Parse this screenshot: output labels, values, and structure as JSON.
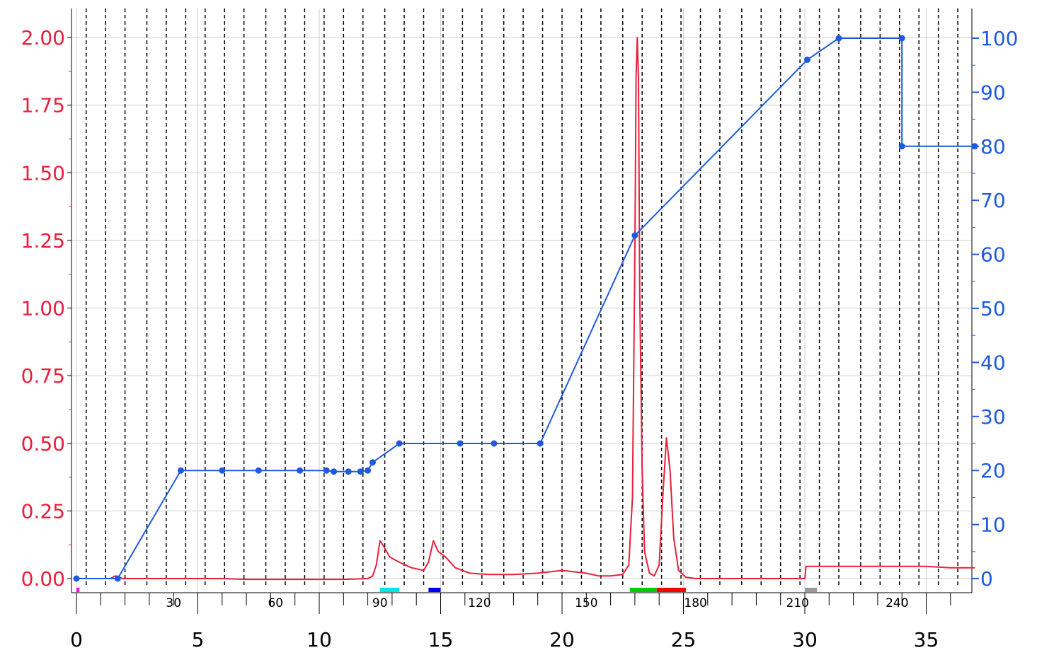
{
  "chart_data": {
    "type": "line",
    "title": "",
    "xlabel": "",
    "ylabel_left": "",
    "ylabel_right": "",
    "xlim": [
      0,
      37
    ],
    "ylim_left": [
      -0.03,
      2.1
    ],
    "ylim_right": [
      -1.5,
      105
    ],
    "x_ticks": [
      "0",
      "5",
      "10",
      "15",
      "20",
      "25",
      "30",
      "35"
    ],
    "y_left_ticks": [
      "0.00",
      "0.25",
      "0.50",
      "0.75",
      "1.00",
      "1.25",
      "1.50",
      "1.75",
      "2.00"
    ],
    "y_right_ticks": [
      "0",
      "10",
      "20",
      "30",
      "40",
      "50",
      "60",
      "70",
      "80",
      "90",
      "100"
    ],
    "grid": true,
    "fraction_labels": [
      "30",
      "60",
      "90",
      "120",
      "150",
      "180",
      "210",
      "240"
    ],
    "fraction_label_x": [
      4,
      8.2,
      12.5,
      16.6,
      21,
      25.5,
      29.7,
      33.8
    ],
    "fraction_lines_x": [
      0.4,
      1.2,
      2,
      2.9,
      3.7,
      4.5,
      5.3,
      6.1,
      6.9,
      7.8,
      8.6,
      9.4,
      10.2,
      11,
      11.8,
      12.7,
      13.5,
      14.3,
      15.1,
      15.9,
      16.7,
      17.6,
      18.4,
      19.2,
      20,
      20.8,
      21.6,
      22.5,
      23.3,
      24.1,
      24.9,
      25.7,
      26.5,
      27.4,
      28.2,
      29,
      29.8,
      30.6,
      31.4,
      32.3,
      33.1,
      33.9,
      34.7,
      35.5,
      36.3
    ],
    "fraction_markers": [
      {
        "x0": 0,
        "x1": 0.12,
        "color": "#ff00ff"
      },
      {
        "x0": 12.5,
        "x1": 13.3,
        "color": "#00e5e5"
      },
      {
        "x0": 14.5,
        "x1": 15,
        "color": "#0000ff"
      },
      {
        "x0": 22.8,
        "x1": 23.9,
        "color": "#00cc00"
      },
      {
        "x0": 23.9,
        "x1": 25.1,
        "color": "#ff0000"
      },
      {
        "x0": 30,
        "x1": 30.5,
        "color": "#999999"
      }
    ],
    "series": [
      {
        "axis": "left",
        "color": "#e8203c",
        "x": [
          0,
          1.4,
          1.6,
          1.9,
          2.5,
          3,
          4,
          5,
          6,
          7,
          8,
          9,
          10,
          11,
          12,
          12.2,
          12.35,
          12.5,
          12.65,
          12.9,
          13.3,
          13.8,
          14.3,
          14.5,
          14.7,
          14.9,
          15.2,
          15.6,
          16.2,
          17,
          18,
          19,
          20,
          21,
          21.5,
          22,
          22.5,
          22.75,
          22.9,
          23,
          23.05,
          23.1,
          23.15,
          23.2,
          23.3,
          23.4,
          23.6,
          23.8,
          24,
          24.15,
          24.3,
          24.45,
          24.6,
          24.8,
          25.1,
          25.5,
          27,
          29,
          30,
          30.05,
          30.5,
          33,
          35,
          36,
          37
        ],
        "y": [
          0,
          0,
          0.01,
          0,
          0,
          0,
          0,
          0,
          0,
          -0.003,
          -0.003,
          -0.003,
          -0.003,
          -0.003,
          0,
          0.01,
          0.05,
          0.14,
          0.12,
          0.08,
          0.06,
          0.04,
          0.03,
          0.06,
          0.14,
          0.1,
          0.08,
          0.04,
          0.02,
          0.015,
          0.015,
          0.02,
          0.03,
          0.02,
          0.01,
          0.01,
          0.015,
          0.05,
          0.3,
          1.2,
          1.85,
          2.0,
          1.85,
          1.05,
          0.4,
          0.1,
          0.02,
          0.01,
          0.05,
          0.3,
          0.52,
          0.4,
          0.15,
          0.03,
          0.005,
          0,
          0,
          0,
          0,
          0.045,
          0.045,
          0.045,
          0.045,
          0.04,
          0.04
        ]
      },
      {
        "axis": "right",
        "color": "#1e5adf",
        "x": [
          0,
          1.7,
          4.3,
          6,
          7.5,
          9.2,
          10.3,
          10.6,
          11.2,
          11.7,
          12,
          12.2,
          13.3,
          15.8,
          17.2,
          19.1,
          23,
          30.1,
          31.4,
          34,
          34,
          37
        ],
        "y": [
          0,
          0,
          20,
          20,
          20,
          20,
          20,
          19.8,
          19.8,
          19.8,
          20,
          21.5,
          25,
          25,
          25,
          25,
          63.5,
          96,
          100,
          100,
          80,
          80
        ]
      }
    ]
  }
}
